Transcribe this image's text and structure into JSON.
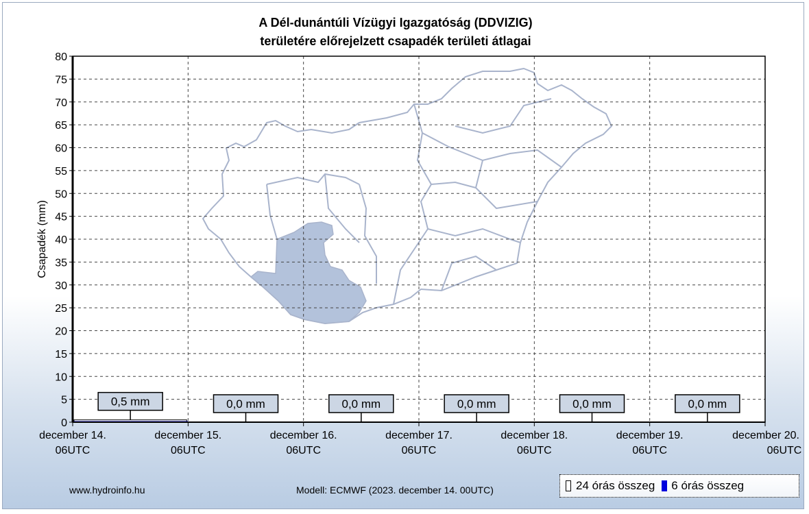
{
  "chart_data": {
    "type": "bar",
    "title": [
      "A Dél-dunántúli Vízügyi Igazgatóság (DDVIZIG)",
      "területére előrejelzett csapadék területi átlagai"
    ],
    "ylabel": "Csapadék (mm)",
    "xlabel": "",
    "ylim": [
      0,
      80
    ],
    "yticks": [
      0,
      5,
      10,
      15,
      20,
      25,
      30,
      35,
      40,
      45,
      50,
      55,
      60,
      65,
      70,
      75,
      80
    ],
    "xticks": [
      {
        "date": "december 14.",
        "time": "06UTC"
      },
      {
        "date": "december 15.",
        "time": "06UTC"
      },
      {
        "date": "december 16.",
        "time": "06UTC"
      },
      {
        "date": "december 17.",
        "time": "06UTC"
      },
      {
        "date": "december 18.",
        "time": "06UTC"
      },
      {
        "date": "december 19.",
        "time": "06UTC"
      },
      {
        "date": "december 20.",
        "time": "06UTC"
      }
    ],
    "grid": true,
    "series": [
      {
        "name": "24 órás összeg",
        "color": "#ffffff",
        "values": [
          0.5,
          0.0,
          0.0,
          0.0,
          0.0,
          0.0
        ],
        "labels": [
          "0,5 mm",
          "0,0 mm",
          "0,0 mm",
          "0,0 mm",
          "0,0 mm",
          "0,0 mm"
        ]
      },
      {
        "name": "6 órás összeg",
        "color": "#0000dd",
        "values": [
          0.1,
          0.2,
          0.1,
          0.1,
          0,
          0,
          0,
          0,
          0,
          0,
          0,
          0,
          0,
          0,
          0,
          0,
          0,
          0,
          0,
          0,
          0,
          0,
          0,
          0
        ]
      }
    ],
    "legend_position": "bottom-right",
    "map_highlight_color": "#b3c2db"
  },
  "footer": {
    "website": "www.hydroinfo.hu",
    "model": "Modell: ECMWF (2023. december 14. 00UTC)"
  },
  "legend": {
    "item_24h": "24 órás összeg",
    "item_6h": "6 órás összeg"
  }
}
